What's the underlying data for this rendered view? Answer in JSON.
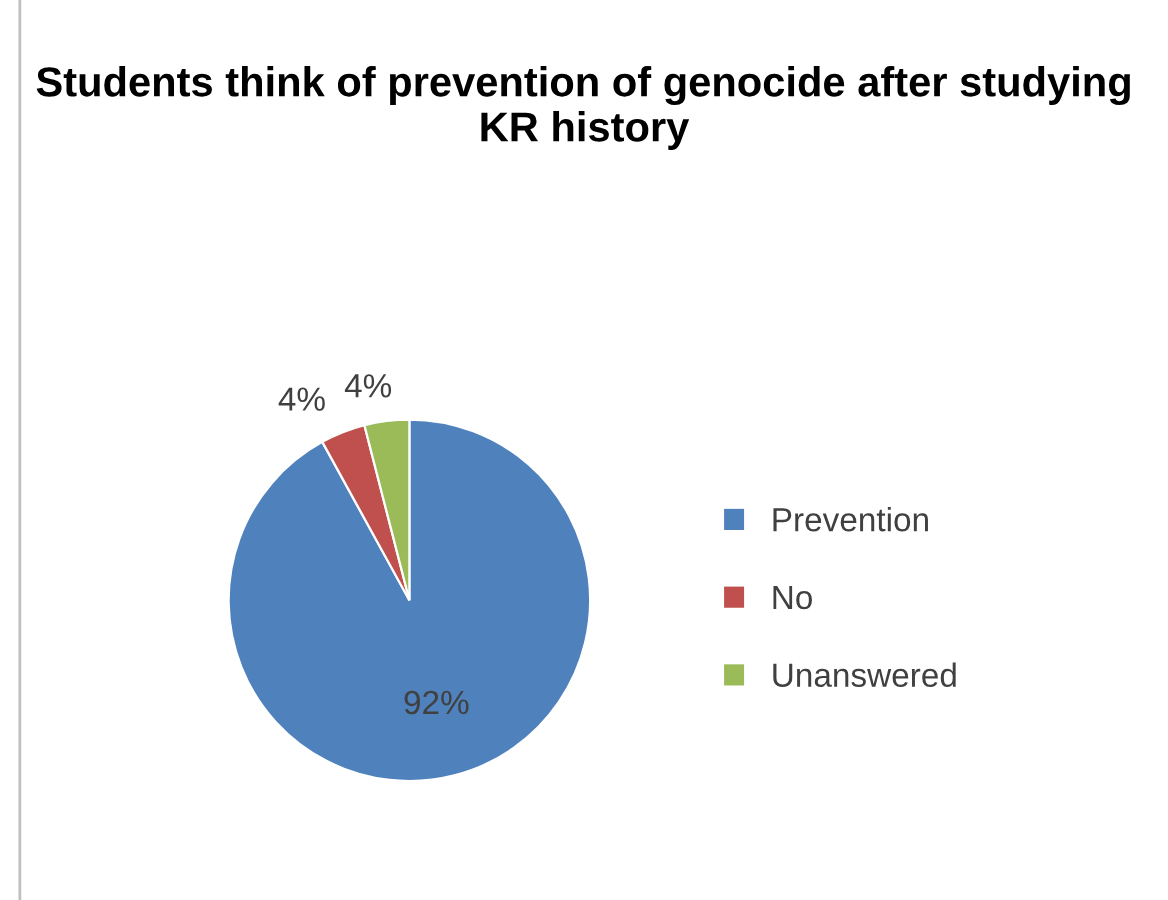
{
  "chart_data": {
    "type": "pie",
    "title": "Students think of prevention of genocide after studying KR history",
    "categories": [
      "Prevention",
      "No",
      "Unanswered"
    ],
    "values": [
      92,
      4,
      4
    ],
    "colors": [
      "#4f81bd",
      "#c0504d",
      "#9bbb59"
    ],
    "value_labels": [
      "92%",
      "4%",
      "4%"
    ],
    "legend": "right"
  }
}
